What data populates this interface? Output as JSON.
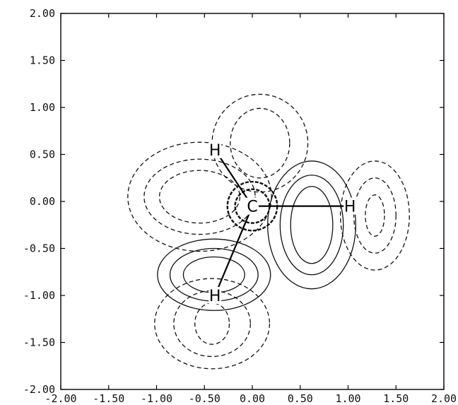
{
  "chart_data": {
    "type": "contour",
    "title": "",
    "xlabel": "",
    "ylabel": "",
    "xlim": [
      -2.0,
      2.0
    ],
    "ylim": [
      -2.0,
      2.0
    ],
    "grid": false,
    "x_ticks": [
      "-2.00",
      "-1.50",
      "-1.00",
      "-0.50",
      "0.00",
      "0.50",
      "1.00",
      "1.50",
      "2.00"
    ],
    "y_ticks": [
      "2.00",
      "1.50",
      "1.00",
      "0.50",
      "0.00",
      "-0.50",
      "-1.00",
      "-1.50",
      "-2.00"
    ],
    "contour_line_styles": {
      "positive": "solid",
      "negative": "dashed"
    },
    "atoms": [
      {
        "label": "C",
        "x": 0.0,
        "y": -0.05
      },
      {
        "label": "H",
        "x": 1.02,
        "y": -0.05
      },
      {
        "label": "H",
        "x": -0.39,
        "y": -1.0
      },
      {
        "label": "H",
        "x": -0.39,
        "y": 0.55
      }
    ],
    "lobes": [
      {
        "sign": "positive",
        "cx": 0.62,
        "cy": -0.25,
        "levels": [
          {
            "rx": 0.46,
            "ry": 0.68
          },
          {
            "rx": 0.33,
            "ry": 0.53
          },
          {
            "rx": 0.22,
            "ry": 0.41
          }
        ]
      },
      {
        "sign": "positive",
        "cx": -0.4,
        "cy": -0.78,
        "levels": [
          {
            "rx": 0.59,
            "ry": 0.38
          },
          {
            "rx": 0.46,
            "ry": 0.28
          },
          {
            "rx": 0.32,
            "ry": 0.19
          }
        ]
      },
      {
        "sign": "negative",
        "cx": 0.08,
        "cy": 0.62,
        "levels": [
          {
            "rx": 0.5,
            "ry": 0.52
          },
          {
            "rx": 0.31,
            "ry": 0.37
          }
        ]
      },
      {
        "sign": "negative",
        "cx": -0.55,
        "cy": 0.05,
        "levels": [
          {
            "rx": 0.75,
            "ry": 0.58
          },
          {
            "rx": 0.58,
            "ry": 0.4
          },
          {
            "rx": 0.42,
            "ry": 0.28
          }
        ]
      },
      {
        "sign": "negative",
        "cx": 1.28,
        "cy": -0.15,
        "levels": [
          {
            "rx": 0.36,
            "ry": 0.58
          },
          {
            "rx": 0.22,
            "ry": 0.4
          },
          {
            "rx": 0.1,
            "ry": 0.22
          }
        ]
      },
      {
        "sign": "negative",
        "cx": -0.42,
        "cy": -1.3,
        "levels": [
          {
            "rx": 0.6,
            "ry": 0.48
          },
          {
            "rx": 0.4,
            "ry": 0.35
          },
          {
            "rx": 0.18,
            "ry": 0.22
          }
        ]
      },
      {
        "sign": "negative",
        "cx": 0.0,
        "cy": -0.05,
        "levels": [
          {
            "rx": 0.26,
            "ry": 0.26
          },
          {
            "rx": 0.18,
            "ry": 0.18
          }
        ]
      }
    ]
  }
}
